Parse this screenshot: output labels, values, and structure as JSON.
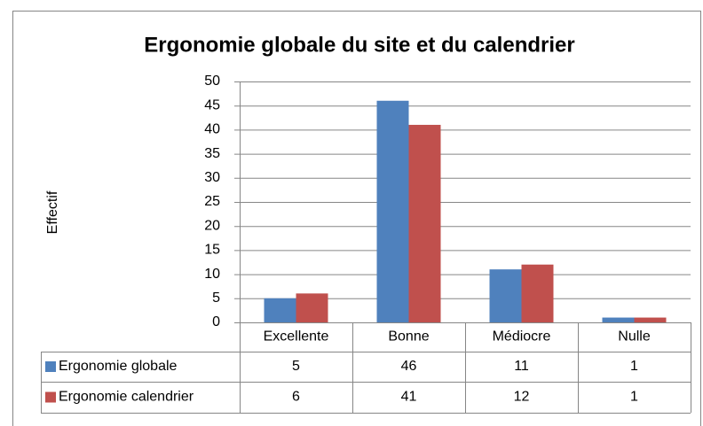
{
  "chart_data": {
    "type": "bar",
    "title": "Ergonomie globale du site et du calendrier",
    "y_label": "Effectif",
    "categories": [
      "Excellente",
      "Bonne",
      "Médiocre",
      "Nulle"
    ],
    "series": [
      {
        "name": "Ergonomie globale",
        "color": "#4f81bd",
        "values": [
          5,
          46,
          11,
          1
        ]
      },
      {
        "name": "Ergonomie calendrier",
        "color": "#c0504d",
        "values": [
          6,
          41,
          12,
          1
        ]
      }
    ],
    "ylim": [
      0,
      50
    ],
    "yticks": [
      0,
      5,
      10,
      15,
      20,
      25,
      30,
      35,
      40,
      45,
      50
    ],
    "grid": true
  }
}
